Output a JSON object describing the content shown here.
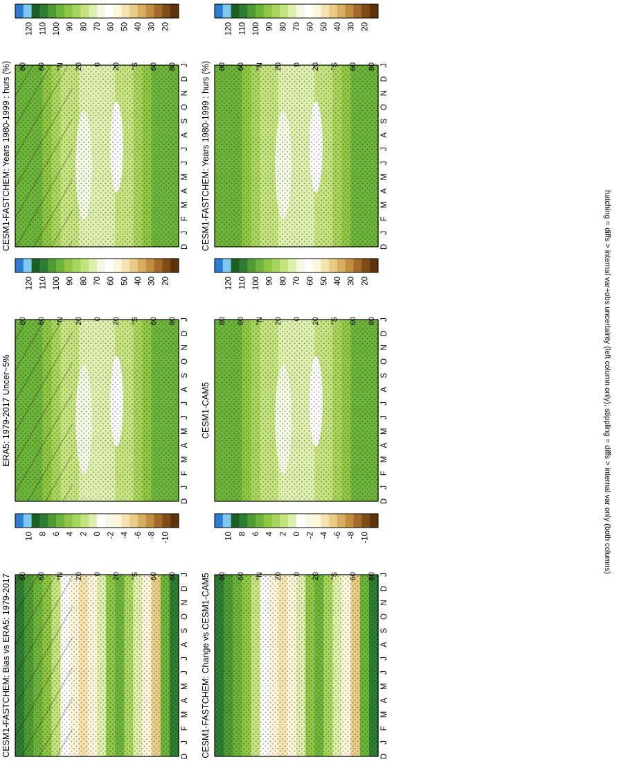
{
  "figure": {
    "footnote": "hatching = diffs > internal var+obs uncertainty (left column only); stippling = diffs > internal var only (both columns)"
  },
  "chart_data": [
    {
      "type": "heatmap",
      "title": "CESM1-FASTCHEM: Years 1980-1999 : hurs (%)",
      "x_labels": [
        "J",
        "F",
        "M",
        "A",
        "M",
        "J",
        "J",
        "A",
        "S",
        "O",
        "N",
        "D",
        "J"
      ],
      "x_first_label": "D",
      "y_labels": [
        "80",
        "60",
        "°N",
        "20",
        "0",
        "20",
        "°S",
        "60",
        "80"
      ],
      "colorbar_labels": [
        "120",
        "110",
        "100",
        "90",
        "80",
        "70",
        "60",
        "50",
        "40",
        "30",
        "20"
      ],
      "colorbar_colors": [
        "#2c7bd4",
        "#7fc8f0",
        "#1b5e20",
        "#2f7d32",
        "#4f9a32",
        "#6db43a",
        "#8fc744",
        "#a9d55c",
        "#c5e37f",
        "#deefae",
        "#f4f9e4",
        "#ffffff",
        "#fff6dc",
        "#f5e4b0",
        "#e9cd86",
        "#d8ad5f",
        "#c18d3f",
        "#a26a28",
        "#7f4c17",
        "#5e330c"
      ],
      "hatching": true,
      "stippling": true
    },
    {
      "type": "heatmap",
      "title": "CESM1-FASTCHEM: Years 1980-1999 : hurs (%)",
      "x_labels": [
        "J",
        "F",
        "M",
        "A",
        "M",
        "J",
        "J",
        "A",
        "S",
        "O",
        "N",
        "D",
        "J"
      ],
      "x_first_label": "D",
      "y_labels": [
        "80",
        "60",
        "°N",
        "20",
        "0",
        "20",
        "°S",
        "60",
        "80"
      ],
      "colorbar_labels": [
        "120",
        "110",
        "100",
        "90",
        "80",
        "70",
        "60",
        "50",
        "40",
        "30",
        "20"
      ],
      "hatching": false,
      "stippling": true
    },
    {
      "type": "heatmap",
      "title": "ERA5: 1979-2017 Uncer~5%",
      "x_labels": [
        "J",
        "F",
        "M",
        "A",
        "M",
        "J",
        "J",
        "A",
        "S",
        "O",
        "N",
        "D",
        "J"
      ],
      "x_first_label": "D",
      "y_labels": [
        "80",
        "60",
        "°N",
        "20",
        "0",
        "20",
        "°S",
        "60",
        "80"
      ],
      "colorbar_labels": [
        "120",
        "110",
        "100",
        "90",
        "80",
        "70",
        "60",
        "50",
        "40",
        "30",
        "20"
      ],
      "hatching": true,
      "stippling": true
    },
    {
      "type": "heatmap",
      "title": "CESM1-CAM5",
      "x_labels": [
        "J",
        "F",
        "M",
        "A",
        "M",
        "J",
        "J",
        "A",
        "S",
        "O",
        "N",
        "D",
        "J"
      ],
      "x_first_label": "D",
      "y_labels": [
        "80",
        "60",
        "°N",
        "20",
        "0",
        "20",
        "°S",
        "60",
        "80"
      ],
      "colorbar_labels": [
        "120",
        "110",
        "100",
        "90",
        "80",
        "70",
        "60",
        "50",
        "40",
        "30",
        "20"
      ],
      "hatching": false,
      "stippling": true
    },
    {
      "type": "heatmap",
      "title": "CESM1-FASTCHEM: Bias vs ERA5: 1979-2017",
      "x_labels": [
        "J",
        "F",
        "M",
        "A",
        "M",
        "J",
        "J",
        "A",
        "S",
        "O",
        "N",
        "D",
        "J"
      ],
      "x_first_label": "D",
      "y_labels": [
        "80",
        "60",
        "°N",
        "20",
        "0",
        "20",
        "°S",
        "60",
        "80"
      ],
      "colorbar_labels": [
        "10",
        "8",
        "6",
        "4",
        "2",
        "0",
        "-2",
        "-4",
        "-6",
        "-8",
        "-10"
      ],
      "hatching": true,
      "stippling": true
    },
    {
      "type": "heatmap",
      "title": "CESM1-FASTCHEM: Change vs CESM1-CAM5",
      "x_labels": [
        "J",
        "F",
        "M",
        "A",
        "M",
        "J",
        "J",
        "A",
        "S",
        "O",
        "N",
        "D",
        "J"
      ],
      "x_first_label": "D",
      "y_labels": [
        "80",
        "60",
        "°N",
        "20",
        "0",
        "20",
        "°S",
        "60",
        "80"
      ],
      "colorbar_labels": [
        "10",
        "8",
        "6",
        "4",
        "2",
        "0",
        "-2",
        "-4",
        "-6",
        "-8",
        "-10"
      ],
      "hatching": false,
      "stippling": true
    }
  ]
}
